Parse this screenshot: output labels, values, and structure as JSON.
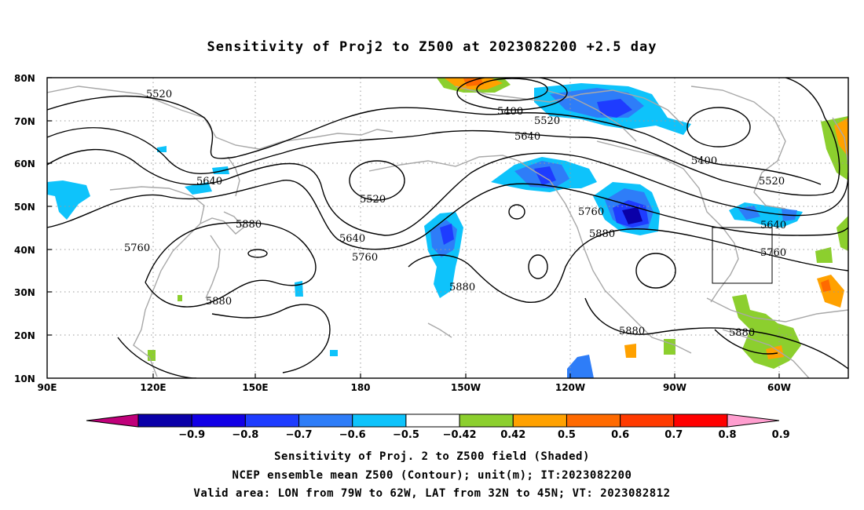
{
  "title": "Sensitivity of Proj2 to Z500 at 2023082200 +2.5 day",
  "lat_labels": [
    "80N",
    "70N",
    "60N",
    "50N",
    "40N",
    "30N",
    "20N",
    "10N"
  ],
  "lon_labels": [
    "90E",
    "120E",
    "150E",
    "180",
    "150W",
    "120W",
    "90W",
    "60W"
  ],
  "contour_labels": [
    "5520",
    "5400",
    "5520",
    "5640",
    "5640",
    "5520",
    "5400",
    "5520",
    "5880",
    "5760",
    "5640",
    "5760",
    "5760",
    "5880",
    "5640",
    "5760",
    "5880",
    "5880",
    "5880",
    "5880"
  ],
  "colorbar": {
    "labels": [
      "-0.9",
      "-0.8",
      "-0.7",
      "-0.6",
      "-0.5",
      "-0.42",
      "0.42",
      "0.5",
      "0.6",
      "0.7",
      "0.8",
      "0.9"
    ],
    "colors": [
      "#c0007a",
      "#0a00a8",
      "#1200e6",
      "#1e3cff",
      "#2e7df8",
      "#0ec3fb",
      "#ffffff",
      "#8ccf2e",
      "#ffa100",
      "#ff6a00",
      "#ff3a00",
      "#ff0000",
      "#ff9ecf"
    ]
  },
  "caption": [
    "Sensitivity of Proj. 2 to Z500 field (Shaded)",
    "NCEP ensemble mean Z500 (Contour); unit(m); IT:2023082200",
    "Valid area: LON from 79W to 62W, LAT from 32N to 45N; VT: 2023082812"
  ]
}
